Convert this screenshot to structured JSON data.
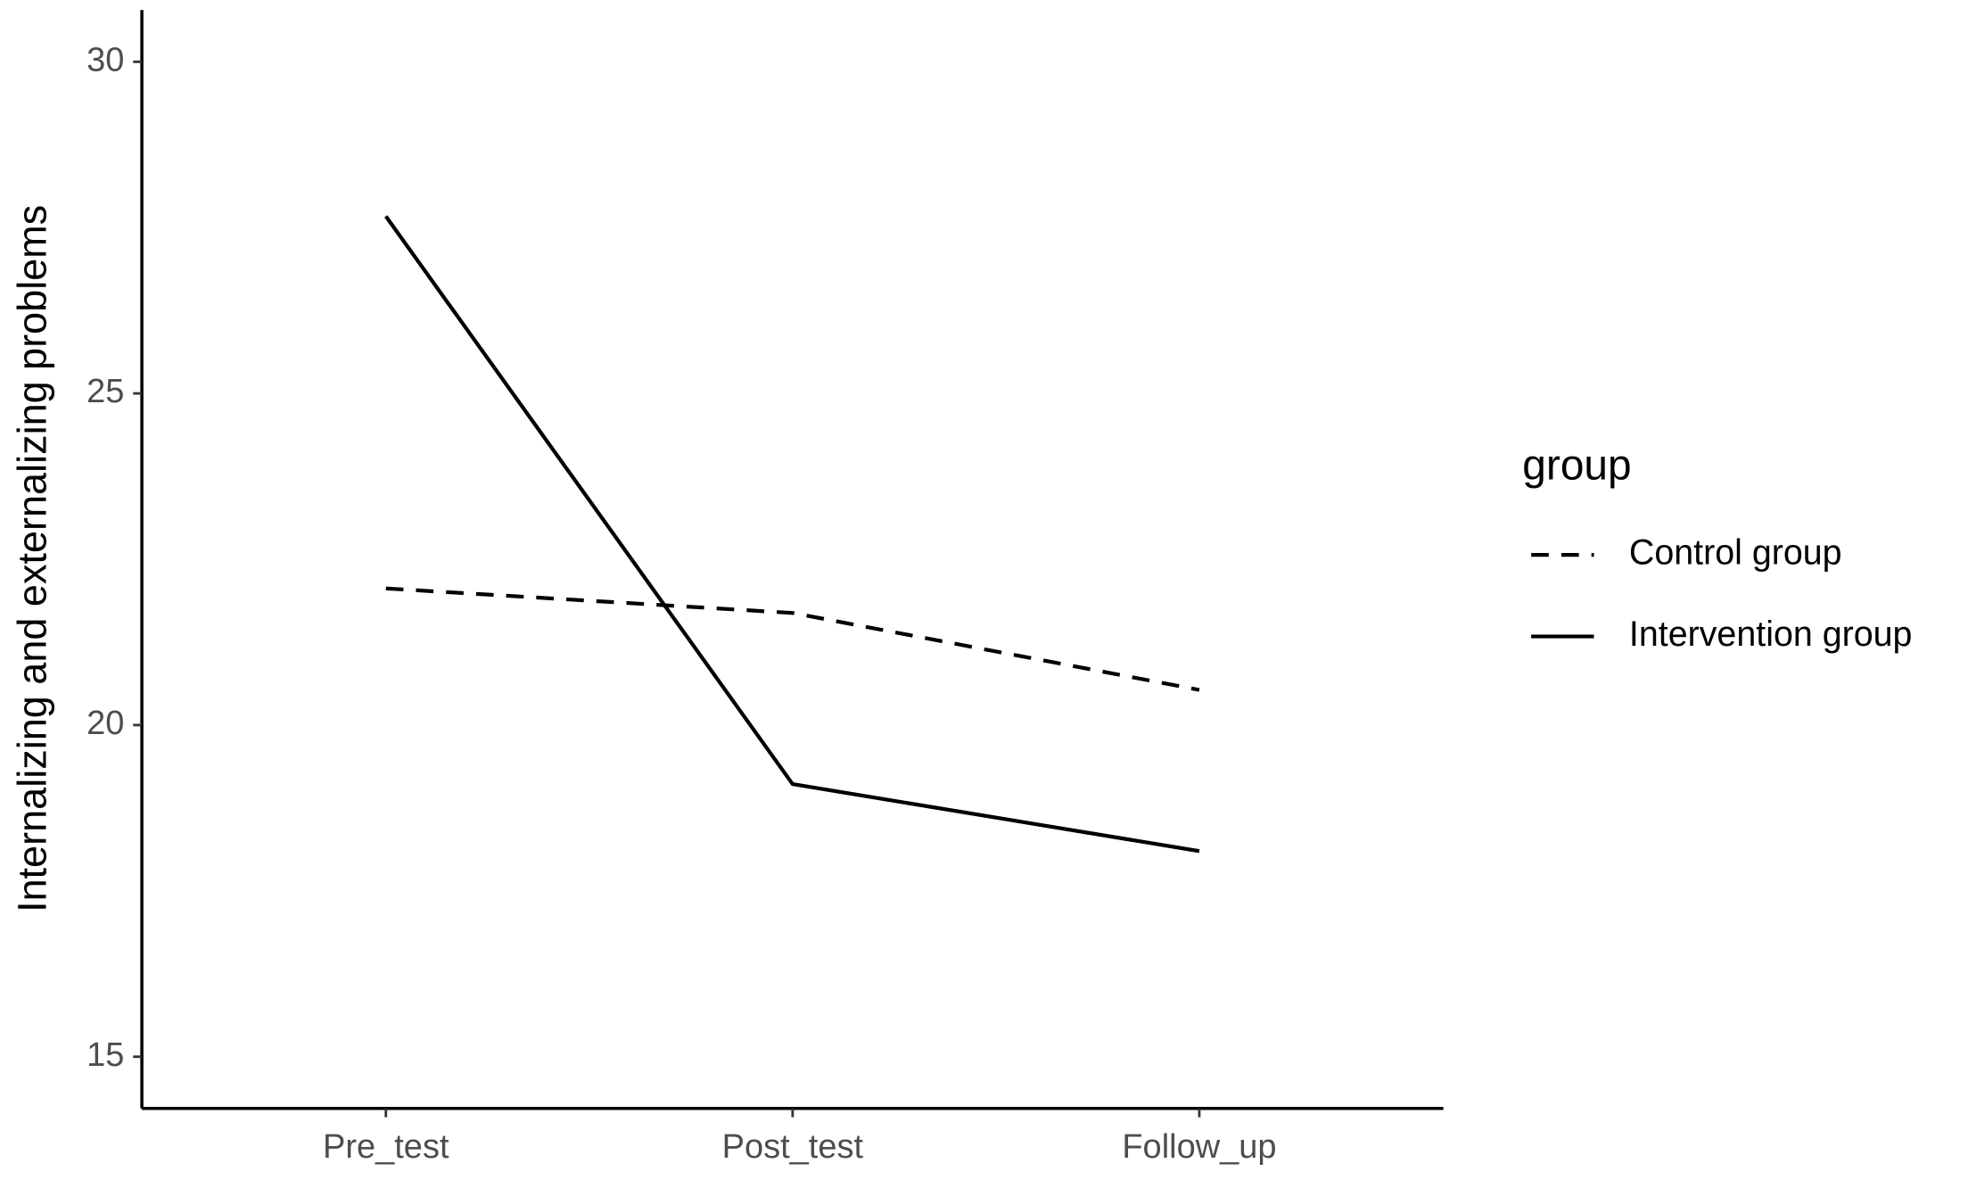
{
  "chart_data": {
    "type": "line",
    "categories": [
      "Pre_test",
      "Post_test",
      "Follow_up"
    ],
    "y_label": "Internalizing and externalizing problems",
    "legend_title": "group",
    "legend_position": "right",
    "series": [
      {
        "name": "Control group",
        "color": "#000000",
        "linestyle": "dashed",
        "values": [
          22.06,
          21.69,
          20.53
        ]
      },
      {
        "name": "Intervention group",
        "color": "#000000",
        "linestyle": "solid",
        "values": [
          27.67,
          19.11,
          18.1
        ]
      }
    ],
    "ylim": [
      14.22,
      30.78
    ],
    "yticks": [
      15,
      20,
      25,
      30
    ],
    "grid": false
  }
}
